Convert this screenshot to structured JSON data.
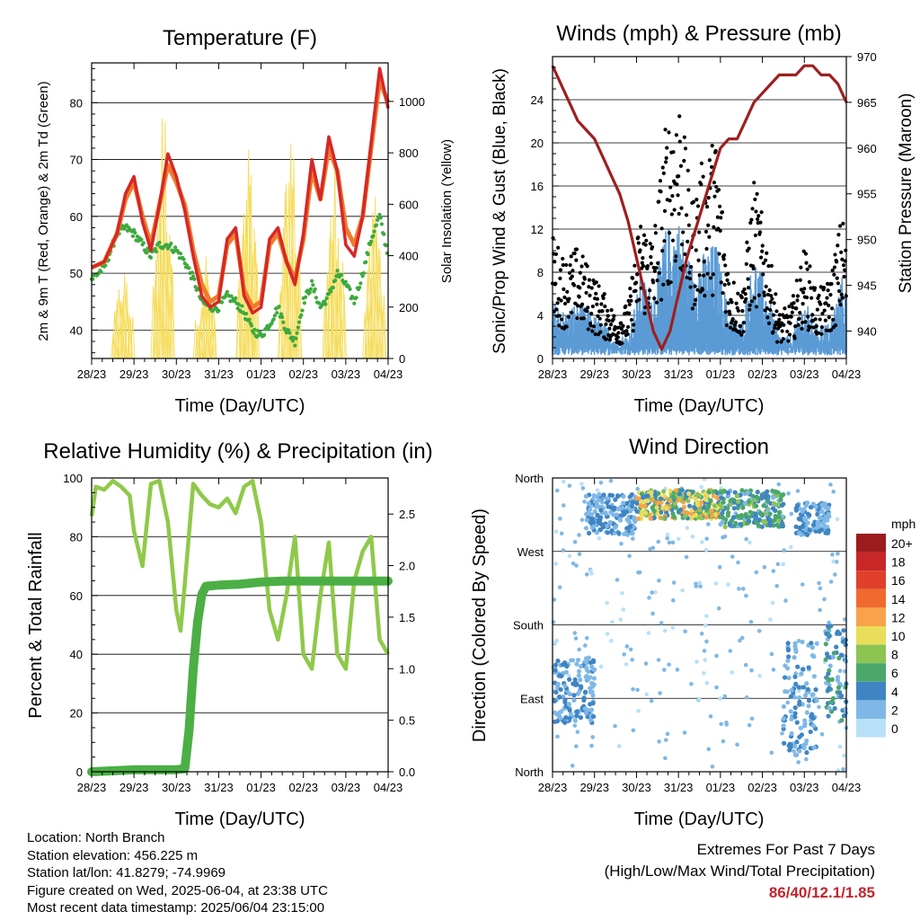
{
  "x_ticks": [
    "28/23",
    "29/23",
    "30/23",
    "31/23",
    "01/23",
    "02/23",
    "03/23",
    "04/23"
  ],
  "x_label": "Time (Day/UTC)",
  "footer": {
    "location": "Location: North Branch",
    "elevation": "Station elevation: 456.225 m",
    "latlon": "Station lat/lon: 41.8279; -74.9969",
    "created": "Figure created on Wed, 2025-06-04, at 23:38 UTC",
    "recent": "Most recent data timestamp: 2025/06/04 23:15:00",
    "extremes_title": "Extremes For Past 7 Days",
    "extremes_sub": "(High/Low/Max Wind/Total Precipitation)",
    "extremes_value": "86/40/12.1/1.85"
  },
  "colors": {
    "temp2m": "#d62728",
    "temp9m": "#f07b2a",
    "dewpoint": "#3daa3d",
    "solar": "#f5dc5a",
    "gust": "#000000",
    "wind": "#5b9bd5",
    "pressure": "#9e1f1f",
    "rh": "#8fc94a",
    "precip": "#4caf45"
  },
  "chart_data": [
    {
      "type": "line",
      "title": "Temperature (F)",
      "xlabel": "Time (Day/UTC)",
      "ylabel": "2m & 9m T (Red, Orange) & 2m Td (Green)",
      "ylabel_right": "Solar Insolation (Yellow)",
      "ylim": [
        35,
        87
      ],
      "ylim_right": [
        0,
        1150
      ],
      "yticks": [
        40,
        50,
        60,
        70,
        80
      ],
      "yticks_right": [
        0,
        200,
        400,
        600,
        800,
        1000
      ],
      "grid": true,
      "x_days": [
        0,
        1,
        2,
        3,
        4,
        5,
        6,
        7
      ],
      "series": [
        {
          "name": "2m T",
          "color": "#d62728",
          "x": [
            0,
            0.3,
            0.6,
            0.8,
            1.0,
            1.2,
            1.4,
            1.6,
            1.8,
            2.0,
            2.2,
            2.4,
            2.6,
            2.8,
            3.0,
            3.2,
            3.4,
            3.6,
            3.8,
            4.0,
            4.2,
            4.4,
            4.6,
            4.8,
            5.0,
            5.2,
            5.4,
            5.6,
            5.8,
            6.0,
            6.2,
            6.4,
            6.6,
            6.8,
            7.0
          ],
          "y": [
            51,
            52,
            57,
            64,
            67,
            59,
            54,
            62,
            71,
            67,
            61,
            53,
            46,
            44,
            45,
            56,
            58,
            46,
            43,
            44,
            56,
            58,
            52,
            48,
            57,
            70,
            63,
            74,
            68,
            55,
            53,
            60,
            73,
            86,
            79
          ]
        },
        {
          "name": "9m T",
          "color": "#f07b2a",
          "x": [
            0,
            0.3,
            0.6,
            0.8,
            1.0,
            1.2,
            1.4,
            1.6,
            1.8,
            2.0,
            2.2,
            2.4,
            2.6,
            2.8,
            3.0,
            3.2,
            3.4,
            3.6,
            3.8,
            4.0,
            4.2,
            4.4,
            4.6,
            4.8,
            5.0,
            5.2,
            5.4,
            5.6,
            5.8,
            6.0,
            6.2,
            6.4,
            6.6,
            6.8,
            7.0
          ],
          "y": [
            51,
            52,
            57,
            63,
            66,
            60,
            55,
            62,
            69,
            66,
            62,
            54,
            48,
            45,
            46,
            55,
            57,
            47,
            44,
            45,
            55,
            57,
            52,
            49,
            56,
            68,
            63,
            72,
            68,
            58,
            55,
            60,
            72,
            84,
            80
          ]
        },
        {
          "name": "2m Td",
          "color": "#3daa3d",
          "x": [
            0,
            0.3,
            0.6,
            0.8,
            1.0,
            1.2,
            1.4,
            1.6,
            1.8,
            2.0,
            2.2,
            2.4,
            2.6,
            2.8,
            3.0,
            3.2,
            3.4,
            3.6,
            3.8,
            4.0,
            4.2,
            4.4,
            4.6,
            4.8,
            5.0,
            5.2,
            5.4,
            5.6,
            5.8,
            6.0,
            6.2,
            6.4,
            6.6,
            6.8,
            7.0
          ],
          "y": [
            49,
            51,
            57,
            58,
            57,
            55,
            53,
            55,
            55,
            54,
            52,
            49,
            45,
            44,
            44,
            46,
            45,
            43,
            40,
            39,
            41,
            44,
            40,
            38,
            45,
            48,
            44,
            46,
            50,
            48,
            45,
            50,
            56,
            60,
            53
          ]
        },
        {
          "name": "Solar Insolation",
          "color": "#f5dc5a",
          "axis": "right",
          "peaks": [
            [
              0.75,
              400
            ],
            [
              1.7,
              1100
            ],
            [
              2.7,
              430
            ],
            [
              3.7,
              880
            ],
            [
              4.7,
              1000
            ],
            [
              5.75,
              830
            ],
            [
              6.7,
              700
            ]
          ]
        }
      ]
    },
    {
      "type": "scatter",
      "title": "Winds (mph) & Pressure (mb)",
      "xlabel": "Time (Day/UTC)",
      "ylabel": "Sonic/Prop Wind & Gust (Blue, Black)",
      "ylabel_right": "Station Pressure (Maroon)",
      "ylim": [
        0,
        28
      ],
      "ylim_right": [
        937,
        970
      ],
      "yticks": [
        0,
        4,
        8,
        12,
        16,
        20,
        24
      ],
      "yticks_right": [
        940,
        945,
        950,
        955,
        960,
        965,
        970
      ],
      "grid": true,
      "series": [
        {
          "name": "Station Pressure",
          "color": "#9e1f1f",
          "axis": "right",
          "x": [
            0,
            0.2,
            0.4,
            0.6,
            0.8,
            1.0,
            1.2,
            1.4,
            1.6,
            1.8,
            2.0,
            2.2,
            2.4,
            2.6,
            2.8,
            3.0,
            3.2,
            3.4,
            3.6,
            3.8,
            4.0,
            4.2,
            4.4,
            4.6,
            4.8,
            5.0,
            5.2,
            5.4,
            5.6,
            5.8,
            6.0,
            6.2,
            6.4,
            6.6,
            6.8,
            7.0
          ],
          "y": [
            969,
            967,
            965,
            963,
            962,
            961,
            959,
            957,
            955,
            952,
            948,
            944,
            940,
            938,
            940,
            944,
            948,
            951,
            954,
            957,
            960,
            961,
            961,
            963,
            965,
            966,
            967,
            968,
            968,
            968,
            969,
            969,
            968,
            968,
            967,
            965
          ]
        },
        {
          "name": "Gust",
          "color": "#000000",
          "envelope_x": [
            0,
            0.3,
            0.6,
            0.9,
            1.2,
            1.5,
            1.8,
            2.1,
            2.4,
            2.7,
            3.0,
            3.3,
            3.6,
            3.9,
            4.2,
            4.5,
            4.8,
            5.1,
            5.4,
            5.7,
            6.0,
            6.3,
            6.6,
            6.9,
            7.0
          ],
          "envelope_y": [
            11,
            9,
            10,
            8,
            6,
            4,
            5,
            13,
            11,
            21,
            25,
            14,
            18,
            20,
            8,
            6,
            16,
            11,
            4,
            5,
            10,
            6,
            7,
            13,
            11
          ]
        },
        {
          "name": "Wind",
          "color": "#5b9bd5",
          "envelope_x": [
            0,
            0.3,
            0.6,
            0.9,
            1.2,
            1.5,
            1.8,
            2.1,
            2.4,
            2.7,
            3.0,
            3.3,
            3.6,
            3.9,
            4.2,
            4.5,
            4.8,
            5.1,
            5.4,
            5.7,
            6.0,
            6.3,
            6.6,
            6.9,
            7.0
          ],
          "envelope_y": [
            5,
            4,
            5,
            4,
            3,
            2,
            2,
            7,
            6,
            11,
            12,
            8,
            9,
            10,
            4,
            3,
            9,
            6,
            2,
            2,
            5,
            3,
            3,
            7,
            6
          ]
        }
      ]
    },
    {
      "type": "line",
      "title": "Relative Humidity (%) & Precipitation (in)",
      "xlabel": "Time (Day/UTC)",
      "ylabel": "Percent & Total Rainfall",
      "ylim": [
        0,
        100
      ],
      "ylim_right": [
        0,
        2.85
      ],
      "yticks": [
        0,
        20,
        40,
        60,
        80,
        100
      ],
      "yticks_right": [
        0.0,
        0.5,
        1.0,
        1.5,
        2.0,
        2.5
      ],
      "grid": true,
      "series": [
        {
          "name": "Relative Humidity",
          "color": "#8fc94a",
          "x": [
            0,
            0.1,
            0.3,
            0.5,
            0.7,
            0.9,
            1.0,
            1.2,
            1.4,
            1.6,
            1.8,
            2.0,
            2.1,
            2.2,
            2.4,
            2.6,
            2.8,
            3.0,
            3.2,
            3.4,
            3.6,
            3.8,
            4.0,
            4.2,
            4.4,
            4.6,
            4.8,
            5.0,
            5.2,
            5.4,
            5.6,
            5.8,
            6.0,
            6.2,
            6.4,
            6.6,
            6.8,
            7.0
          ],
          "y": [
            87,
            97,
            96,
            99,
            97,
            94,
            82,
            70,
            98,
            99,
            85,
            55,
            48,
            64,
            98,
            94,
            91,
            90,
            93,
            88,
            97,
            99,
            85,
            55,
            45,
            60,
            80,
            40,
            35,
            60,
            78,
            40,
            35,
            65,
            75,
            80,
            45,
            40
          ]
        },
        {
          "name": "Total Precipitation",
          "color": "#4caf45",
          "axis": "right",
          "x": [
            0,
            0.5,
            1.0,
            1.5,
            2.0,
            2.2,
            2.3,
            2.4,
            2.5,
            2.6,
            2.7,
            3.0,
            3.5,
            4.0,
            4.5,
            5.0,
            5.5,
            6.0,
            6.5,
            7.0
          ],
          "y": [
            0.0,
            0.01,
            0.02,
            0.02,
            0.02,
            0.03,
            0.4,
            1.0,
            1.45,
            1.72,
            1.8,
            1.81,
            1.82,
            1.84,
            1.85,
            1.85,
            1.85,
            1.85,
            1.85,
            1.85
          ]
        }
      ]
    },
    {
      "type": "scatter",
      "title": "Wind Direction",
      "xlabel": "Time (Day/UTC)",
      "ylabel": "Direction (Colored By Speed)",
      "y_categories": [
        "North",
        "East",
        "South",
        "West",
        "North"
      ],
      "legend": {
        "title": "mph",
        "labels": [
          "20+",
          "18",
          "16",
          "14",
          "12",
          "10",
          "8",
          "6",
          "4",
          "2",
          "0"
        ],
        "colors": [
          "#9b1c1c",
          "#c72727",
          "#e0402a",
          "#f06a30",
          "#f8a24a",
          "#e8de5a",
          "#8cc452",
          "#4aa86a",
          "#3f85c4",
          "#7fb8e6",
          "#b8e0f6"
        ]
      },
      "clusters": [
        {
          "x": [
            0.0,
            1.0
          ],
          "dir": [
            60,
            140
          ],
          "speed": 3
        },
        {
          "x": [
            0.8,
            2.0
          ],
          "dir": [
            290,
            340
          ],
          "speed": 3
        },
        {
          "x": [
            2.0,
            4.0
          ],
          "dir": [
            310,
            345
          ],
          "speed": 8
        },
        {
          "x": [
            4.0,
            5.5
          ],
          "dir": [
            300,
            345
          ],
          "speed": 5
        },
        {
          "x": [
            5.5,
            6.3
          ],
          "dir": [
            20,
            160
          ],
          "speed": 3
        },
        {
          "x": [
            5.8,
            6.6
          ],
          "dir": [
            290,
            330
          ],
          "speed": 3
        },
        {
          "x": [
            6.5,
            7.0
          ],
          "dir": [
            60,
            180
          ],
          "speed": 4
        }
      ]
    }
  ]
}
